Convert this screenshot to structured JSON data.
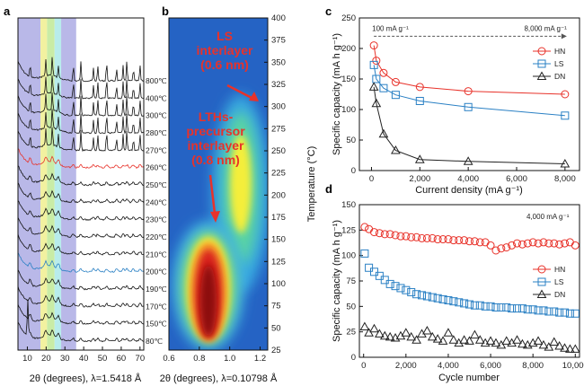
{
  "panel_labels": {
    "a": "a",
    "b": "b",
    "c": "c",
    "d": "d"
  },
  "colors": {
    "HN": "#e8322a",
    "LS": "#2a80c4",
    "DN": "#222222",
    "dashed_line": "#555555",
    "annotation_red": "#e8322a"
  },
  "chart_data": [
    {
      "panel": "a",
      "type": "line",
      "xlabel": "2θ (degrees), λ=1.5418 Å",
      "xticks": [
        "10",
        "20",
        "30",
        "40",
        "50",
        "60",
        "70"
      ],
      "xlim": [
        5,
        72
      ],
      "highlight_bands": [
        {
          "from": 5,
          "to": 17,
          "color": "#b9b8e8"
        },
        {
          "from": 17,
          "to": 20.5,
          "color": "#f2f1a0"
        },
        {
          "from": 20.5,
          "to": 24.5,
          "color": "#c9eca6"
        },
        {
          "from": 24.5,
          "to": 28,
          "color": "#b8ecec"
        },
        {
          "from": 28,
          "to": 36,
          "color": "#b9b8e8"
        }
      ],
      "series": [
        {
          "name": "800℃",
          "color": "#111111"
        },
        {
          "name": "400℃",
          "color": "#111111"
        },
        {
          "name": "300℃",
          "color": "#111111"
        },
        {
          "name": "280℃",
          "color": "#111111"
        },
        {
          "name": "270℃",
          "color": "#111111"
        },
        {
          "name": "260℃",
          "color": "#e8322a"
        },
        {
          "name": "250℃",
          "color": "#111111"
        },
        {
          "name": "240℃",
          "color": "#111111"
        },
        {
          "name": "230℃",
          "color": "#111111"
        },
        {
          "name": "220℃",
          "color": "#111111"
        },
        {
          "name": "210℃",
          "color": "#111111"
        },
        {
          "name": "200℃",
          "color": "#2a80c4"
        },
        {
          "name": "190℃",
          "color": "#111111"
        },
        {
          "name": "170℃",
          "color": "#111111"
        },
        {
          "name": "150℃",
          "color": "#111111"
        },
        {
          "name": "80℃",
          "color": "#111111"
        }
      ]
    },
    {
      "panel": "b",
      "type": "heatmap",
      "xlabel": "2θ (degrees), λ=0.10798 Å",
      "ylabel": "Temperature (°C)",
      "xticks": [
        "0.6",
        "0.8",
        "1.0",
        "1.2"
      ],
      "xlim": [
        0.6,
        1.25
      ],
      "yticks": [
        "25",
        "50",
        "75",
        "100",
        "125",
        "150",
        "175",
        "200",
        "225",
        "250",
        "275",
        "300",
        "325",
        "350",
        "375",
        "400"
      ],
      "ylim": [
        25,
        400
      ],
      "annotations": [
        {
          "lines": [
            "LS",
            "interlayer",
            "(0.6 nm)"
          ]
        },
        {
          "lines": [
            "LTHs-",
            "precursor",
            "interlayer",
            "(0.8 nm)"
          ]
        }
      ]
    },
    {
      "panel": "c",
      "type": "line",
      "xlabel": "Current density (mA g⁻¹)",
      "ylabel": "Specific capacity (mA h g⁻¹)",
      "xlim": [
        -500,
        8600
      ],
      "ylim": [
        0,
        250
      ],
      "xticks": [
        "0",
        "2,000",
        "4,000",
        "6,000",
        "8,000"
      ],
      "yticks": [
        "0",
        "50",
        "100",
        "150",
        "200",
        "250"
      ],
      "annotations": [
        "100 mA g⁻¹",
        "8,000 mA g⁻¹"
      ],
      "x": [
        100,
        200,
        500,
        1000,
        2000,
        4000,
        8000
      ],
      "series": [
        {
          "name": "HN",
          "values": [
            205,
            180,
            160,
            145,
            137,
            130,
            125
          ]
        },
        {
          "name": "LS",
          "values": [
            173,
            150,
            135,
            124,
            114,
            104,
            90
          ]
        },
        {
          "name": "DN",
          "values": [
            137,
            110,
            60,
            33,
            18,
            15,
            11
          ]
        }
      ]
    },
    {
      "panel": "d",
      "type": "scatter",
      "xlabel": "Cycle number",
      "ylabel": "Specific capacity (mA h g⁻¹)",
      "xlim": [
        -200,
        10200
      ],
      "ylim": [
        0,
        150
      ],
      "xticks": [
        "0",
        "2,000",
        "4,000",
        "6,000",
        "8,000",
        "10,000"
      ],
      "yticks": [
        "0",
        "25",
        "50",
        "75",
        "100",
        "125",
        "150"
      ],
      "annotation": "4,000 mA g⁻¹",
      "x": [
        50,
        250,
        500,
        750,
        1000,
        1250,
        1500,
        1750,
        2000,
        2250,
        2500,
        2750,
        3000,
        3250,
        3500,
        3750,
        4000,
        4250,
        4500,
        4750,
        5000,
        5250,
        5500,
        5750,
        6000,
        6250,
        6500,
        6750,
        7000,
        7250,
        7500,
        7750,
        8000,
        8250,
        8500,
        8750,
        9000,
        9250,
        9500,
        9750,
        10000
      ],
      "series": [
        {
          "name": "HN",
          "values": [
            128,
            126,
            123,
            122,
            121,
            121,
            120,
            119,
            119,
            118,
            118,
            117,
            117,
            117,
            116,
            116,
            116,
            115,
            115,
            115,
            114,
            114,
            113,
            113,
            110,
            105,
            107,
            108,
            110,
            112,
            111,
            112,
            113,
            112,
            113,
            112,
            112,
            111,
            112,
            113,
            110
          ]
        },
        {
          "name": "LS",
          "values": [
            102,
            88,
            84,
            80,
            76,
            72,
            70,
            68,
            66,
            64,
            62,
            61,
            60,
            59,
            58,
            57,
            56,
            55,
            54,
            53,
            52,
            51,
            51,
            50,
            50,
            49,
            49,
            49,
            48,
            48,
            48,
            47,
            47,
            46,
            46,
            45,
            45,
            44,
            44,
            43,
            43
          ]
        },
        {
          "name": "DN",
          "values": [
            30,
            24,
            28,
            23,
            21,
            20,
            19,
            21,
            24,
            20,
            17,
            23,
            26,
            20,
            18,
            16,
            24,
            17,
            14,
            17,
            16,
            22,
            17,
            14,
            16,
            14,
            12,
            16,
            14,
            17,
            13,
            12,
            14,
            16,
            12,
            10,
            15,
            11,
            9,
            8,
            8
          ]
        }
      ]
    }
  ]
}
